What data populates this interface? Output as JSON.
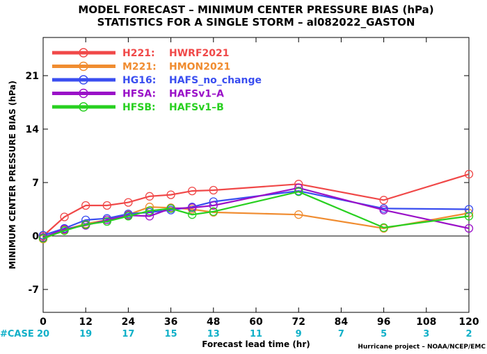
{
  "chart_data": {
    "type": "line",
    "title": "MODEL FORECAST – MINIMUM CENTER PRESSURE BIAS (hPa)",
    "subtitle": "STATISTICS FOR A SINGLE STORM – al082022_GASTON",
    "xlabel": "Forecast lead time (hr)",
    "ylabel": "MINIMUM CENTER PRESSURE BIAS (hPa)",
    "xlim": [
      0,
      120
    ],
    "ylim": [
      -10,
      26
    ],
    "x_ticks": [
      "0",
      "12",
      "24",
      "36",
      "48",
      "60",
      "72",
      "84",
      "96",
      "108",
      "120"
    ],
    "y_ticks": [
      "-7",
      "0",
      "7",
      "14",
      "21"
    ],
    "case_label": "#CASE",
    "cases": [
      "20",
      "19",
      "17",
      "15",
      "13",
      "11",
      "9",
      "7",
      "5",
      "3",
      "2"
    ],
    "credit": "Hurricane project – NOAA/NCEP/EMC",
    "legend_position": "top-left",
    "series": [
      {
        "code": "H221:",
        "name": "HWRF2021",
        "color": "#f04848",
        "x": [
          0,
          6,
          12,
          18,
          24,
          30,
          36,
          42,
          48,
          72,
          96,
          120
        ],
        "values": [
          0.0,
          2.5,
          4.0,
          4.0,
          4.4,
          5.2,
          5.4,
          5.9,
          6.0,
          6.8,
          4.7,
          8.1
        ]
      },
      {
        "code": "M221:",
        "name": "HMON2021",
        "color": "#f08c30",
        "x": [
          0,
          6,
          12,
          18,
          24,
          30,
          36,
          42,
          48,
          72,
          96,
          120
        ],
        "values": [
          -0.4,
          0.8,
          1.6,
          2.1,
          2.8,
          3.8,
          3.7,
          3.5,
          3.1,
          2.8,
          1.0,
          3.0
        ]
      },
      {
        "code": "HG16:",
        "name": "HAFS_no_change",
        "color": "#3a4ef0",
        "x": [
          0,
          6,
          12,
          18,
          24,
          30,
          36,
          42,
          48,
          72,
          96,
          120
        ],
        "values": [
          0.1,
          1.0,
          2.1,
          2.3,
          2.9,
          3.1,
          3.4,
          3.8,
          4.5,
          5.9,
          3.6,
          3.5
        ]
      },
      {
        "code": "HFSA:",
        "name": "HAFSv1–A",
        "color": "#9a10c8",
        "x": [
          0,
          6,
          12,
          18,
          24,
          30,
          36,
          42,
          48,
          72,
          96,
          120
        ],
        "values": [
          -0.2,
          0.9,
          1.4,
          2.1,
          2.7,
          2.6,
          3.6,
          3.7,
          4.0,
          6.3,
          3.4,
          1.0
        ]
      },
      {
        "code": "HFSB:",
        "name": "HAFSv1–B",
        "color": "#28d020",
        "x": [
          0,
          6,
          12,
          18,
          24,
          30,
          36,
          42,
          48,
          72,
          96,
          120
        ],
        "values": [
          -0.3,
          0.7,
          1.5,
          1.9,
          2.6,
          3.3,
          3.6,
          2.8,
          3.2,
          5.8,
          1.1,
          2.6
        ]
      }
    ]
  }
}
